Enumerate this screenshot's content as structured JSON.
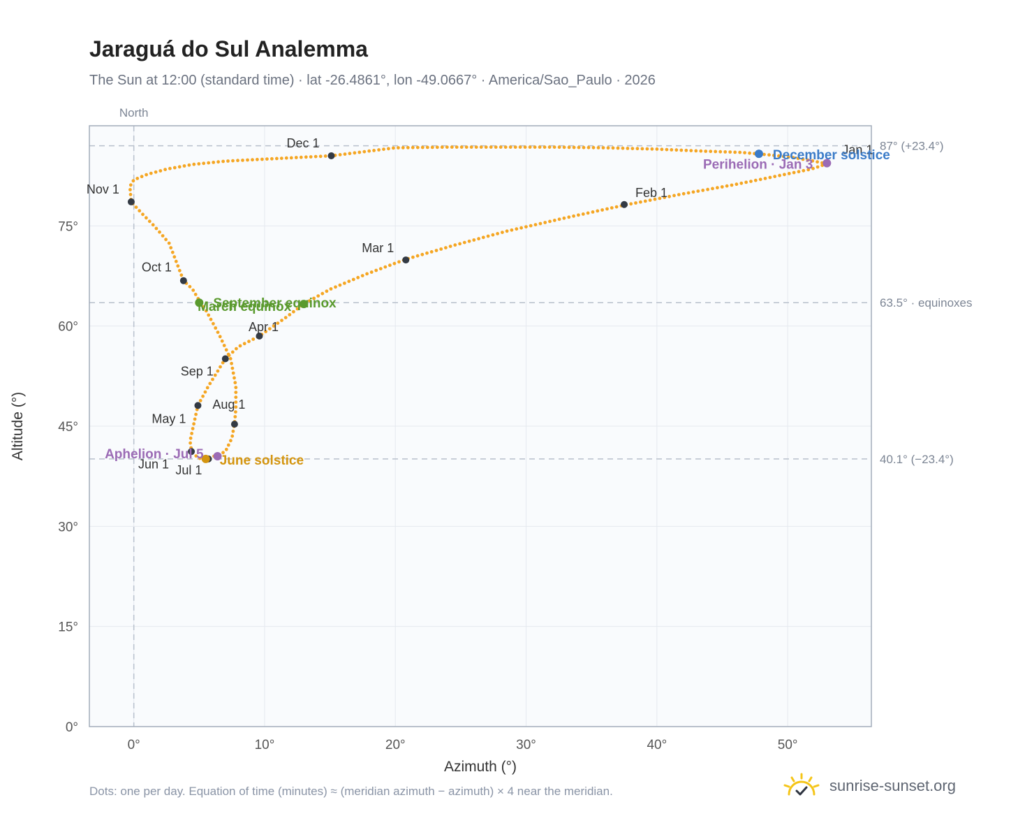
{
  "title": "Jaraguá do Sul Analemma",
  "subtitle": "The Sun at 12:00 (standard time) · lat -26.4861°, lon -49.0667° · America/Sao_Paulo · 2026",
  "footnote": "Dots: one per day. Equation of time (minutes) ≈ (meridian azimuth − azimuth) × 4 near the meridian.",
  "brand": {
    "name": "sunrise-sunset.org",
    "logo_icon": "sun-check-icon"
  },
  "colors": {
    "curve": "#f5a623",
    "month_marker": "#333a44",
    "equinox": "#5a9a2e",
    "june_solstice": "#d4950f",
    "december_solstice": "#3a7bc8",
    "perihelion_aphelion": "#9b6bb5",
    "reference_line": "#b8c0cc",
    "plot_bg": "#f9fbfd",
    "grid": "#e5e9ef"
  },
  "chart_data": {
    "type": "scatter",
    "xlabel": "Azimuth (°)",
    "ylabel": "Altitude (°)",
    "xlim": [
      -3.4,
      56.4
    ],
    "ylim": [
      0,
      90
    ],
    "x_ticks": [
      0,
      10,
      20,
      30,
      40,
      50
    ],
    "x_tick_labels": [
      "0°",
      "10°",
      "20°",
      "30°",
      "40°",
      "50°"
    ],
    "y_ticks": [
      0,
      15,
      30,
      45,
      60,
      75
    ],
    "y_tick_labels": [
      "0°",
      "15°",
      "30°",
      "45°",
      "60°",
      "75°"
    ],
    "grid": true,
    "north_label": "North",
    "reference_lines": [
      {
        "orientation": "horizontal",
        "value": 87.0,
        "label": "87° (+23.4°)"
      },
      {
        "orientation": "horizontal",
        "value": 63.5,
        "label": "63.5° · equinoxes"
      },
      {
        "orientation": "horizontal",
        "value": 40.1,
        "label": "40.1° (−23.4°)"
      },
      {
        "orientation": "vertical",
        "value": 0,
        "label": "North"
      }
    ],
    "series": [
      {
        "points": [
          [
            53.0,
            84.3
          ],
          [
            52.0,
            84.7
          ],
          [
            50.5,
            85.2
          ],
          [
            48.8,
            85.6
          ],
          [
            46.5,
            86.0
          ],
          [
            43.5,
            86.2
          ],
          [
            40.0,
            86.5
          ],
          [
            36.0,
            86.7
          ],
          [
            32.0,
            86.8
          ],
          [
            28.0,
            86.8
          ],
          [
            24.0,
            86.8
          ],
          [
            20.0,
            86.7
          ],
          [
            15.1,
            85.5
          ],
          [
            10.0,
            85.0
          ],
          [
            7.0,
            84.7
          ],
          [
            4.5,
            84.2
          ],
          [
            2.5,
            83.5
          ],
          [
            1.0,
            82.7
          ],
          [
            0.0,
            81.9
          ],
          [
            -0.3,
            80.9
          ],
          [
            -0.2,
            78.6
          ],
          [
            0.6,
            76.9
          ],
          [
            1.6,
            74.9
          ],
          [
            2.7,
            72.4
          ],
          [
            3.8,
            66.8
          ],
          [
            4.5,
            65.5
          ],
          [
            5.1,
            63.5
          ],
          [
            5.5,
            62.4
          ],
          [
            6.5,
            58.8
          ],
          [
            7.4,
            55.1
          ],
          [
            7.8,
            51.0
          ],
          [
            7.8,
            47.5
          ],
          [
            7.7,
            45.4
          ],
          [
            7.5,
            43.2
          ],
          [
            7.0,
            41.2
          ],
          [
            6.3,
            40.6
          ],
          [
            5.5,
            40.1
          ],
          [
            4.9,
            40.2
          ],
          [
            4.4,
            41.4
          ],
          [
            4.3,
            42.8
          ],
          [
            4.9,
            48.1
          ],
          [
            5.7,
            51.0
          ],
          [
            7.0,
            55.1
          ],
          [
            8.0,
            56.9
          ],
          [
            9.6,
            58.5
          ],
          [
            11.5,
            61.1
          ],
          [
            13.0,
            63.3
          ],
          [
            15.0,
            65.5
          ],
          [
            17.8,
            67.8
          ],
          [
            20.8,
            70.0
          ],
          [
            24.5,
            72.1
          ],
          [
            28.5,
            74.2
          ],
          [
            33.0,
            76.2
          ],
          [
            37.5,
            78.1
          ],
          [
            42.0,
            79.8
          ],
          [
            46.0,
            81.2
          ],
          [
            49.5,
            82.6
          ],
          [
            51.8,
            83.5
          ],
          [
            53.0,
            84.3
          ]
        ]
      }
    ],
    "month_markers": [
      {
        "label": "Jan 1",
        "x": 53.0,
        "y": 84.3
      },
      {
        "label": "Feb 1",
        "x": 37.5,
        "y": 78.2
      },
      {
        "label": "Mar 1",
        "x": 20.8,
        "y": 69.9
      },
      {
        "label": "Apr 1",
        "x": 9.6,
        "y": 58.5
      },
      {
        "label": "May 1",
        "x": 4.9,
        "y": 48.1
      },
      {
        "label": "Jun 1",
        "x": 4.4,
        "y": 41.2
      },
      {
        "label": "Jul 1",
        "x": 5.7,
        "y": 40.1
      },
      {
        "label": "Aug 1",
        "x": 7.7,
        "y": 45.3
      },
      {
        "label": "Sep 1",
        "x": 7.0,
        "y": 55.1
      },
      {
        "label": "Oct 1",
        "x": 3.8,
        "y": 66.8
      },
      {
        "label": "Nov 1",
        "x": -0.2,
        "y": 78.6
      },
      {
        "label": "Dec 1",
        "x": 15.1,
        "y": 85.5
      }
    ],
    "special_points": [
      {
        "label": "March equinox",
        "x": 13.0,
        "y": 63.3,
        "color_key": "equinox"
      },
      {
        "label": "September equinox",
        "x": 5.0,
        "y": 63.5,
        "color_key": "equinox"
      },
      {
        "label": "June solstice",
        "x": 5.5,
        "y": 40.1,
        "color_key": "june_solstice"
      },
      {
        "label": "December solstice",
        "x": 47.8,
        "y": 85.8,
        "color_key": "december_solstice"
      },
      {
        "label": "Perihelion · Jan 3",
        "x": 53.0,
        "y": 84.4,
        "color_key": "perihelion_aphelion"
      },
      {
        "label": "Aphelion · Jul 5",
        "x": 6.4,
        "y": 40.5,
        "color_key": "perihelion_aphelion"
      }
    ]
  }
}
